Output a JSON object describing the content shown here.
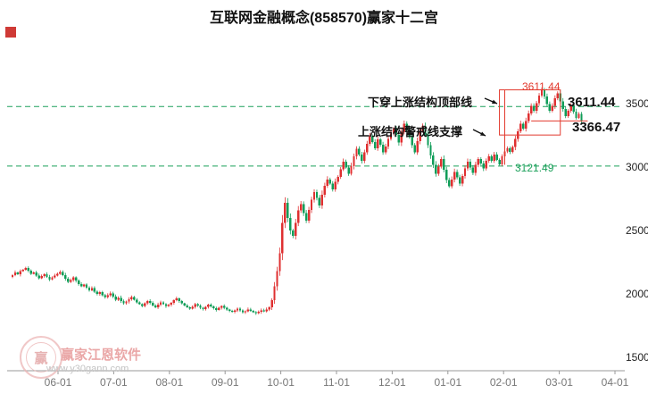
{
  "title": "互联网金融概念(858570)赢家十二宫",
  "annotations": {
    "top_line_label": "下穿上涨结构顶部线",
    "support_label": "上涨结构警戒线支撑"
  },
  "price_labels": {
    "peak_small": "3611.44",
    "right_top": "3611.44",
    "right_bottom": "3366.47",
    "structure_low": "3121.49"
  },
  "watermark": {
    "brand": "赢家江恩软件",
    "url": "www.y30gann.com",
    "seal_char": "赢"
  },
  "chart_data": {
    "type": "candlestick",
    "title": "互联网金融概念(858570)赢家十二宫",
    "x_axis": {
      "tick_labels": [
        "06-01",
        "07-01",
        "08-01",
        "09-01",
        "10-01",
        "11-01",
        "12-01",
        "01-01",
        "02-01",
        "03-01",
        "04-01"
      ]
    },
    "y_axis": {
      "tick_labels": [
        "3500",
        "3000",
        "2500",
        "2000",
        "1500"
      ],
      "tick_values": [
        3500,
        3000,
        2500,
        2000,
        1500
      ],
      "range": [
        1395,
        4060
      ]
    },
    "legend_position": "none",
    "grid": "off",
    "series": [
      {
        "name": "互联网金融概念(858570)",
        "closes": [
          2150,
          2170,
          2155,
          2180,
          2190,
          2205,
          2185,
          2160,
          2170,
          2145,
          2125,
          2140,
          2155,
          2135,
          2115,
          2130,
          2145,
          2160,
          2175,
          2150,
          2120,
          2095,
          2110,
          2130,
          2105,
          2080,
          2060,
          2075,
          2050,
          2030,
          2045,
          2020,
          2000,
          2015,
          1990,
          1975,
          1990,
          2005,
          1980,
          1955,
          1970,
          1945,
          1925,
          1940,
          1960,
          1975,
          1955,
          1935,
          1920,
          1905,
          1925,
          1945,
          1930,
          1910,
          1895,
          1915,
          1935,
          1920,
          1905,
          1915,
          1930,
          1950,
          1965,
          1945,
          1925,
          1910,
          1895,
          1885,
          1900,
          1920,
          1908,
          1892,
          1880,
          1898,
          1915,
          1902,
          1888,
          1875,
          1892,
          1905,
          1890,
          1878,
          1868,
          1858,
          1872,
          1885,
          1870,
          1855,
          1862,
          1878,
          1868,
          1856,
          1848,
          1858,
          1872,
          1862,
          1878,
          1895,
          1950,
          2060,
          2180,
          2320,
          2560,
          2720,
          2600,
          2500,
          2460,
          2560,
          2660,
          2710,
          2640,
          2580,
          2665,
          2745,
          2805,
          2760,
          2700,
          2785,
          2855,
          2905,
          2870,
          2825,
          2885,
          2925,
          2985,
          3045,
          3000,
          2950,
          3010,
          3085,
          3145,
          3100,
          3050,
          3120,
          3185,
          3245,
          3200,
          3150,
          3220,
          3180,
          3120,
          3165,
          3225,
          3265,
          3305,
          3255,
          3195,
          3280,
          3345,
          3300,
          3240,
          3175,
          3120,
          3205,
          3285,
          3325,
          3260,
          3175,
          3095,
          3020,
          2950,
          3005,
          3065,
          2980,
          2900,
          2850,
          2905,
          2965,
          2920,
          2870,
          2930,
          2990,
          3045,
          3000,
          2958,
          3020,
          3065,
          3030,
          2990,
          3050,
          3085,
          3050,
          3100,
          3060,
          3025,
          3085,
          3125,
          3150,
          3121,
          3160,
          3225,
          3285,
          3345,
          3305,
          3365,
          3425,
          3485,
          3445,
          3505,
          3565,
          3611,
          3560,
          3500,
          3445,
          3485,
          3545,
          3585,
          3520,
          3460,
          3405,
          3445,
          3490,
          3440,
          3390,
          3420,
          3366
        ]
      }
    ],
    "key_levels": {
      "peak": 3611.44,
      "support": 3366.47,
      "structure_low": 3121.49,
      "dashed_lines": [
        3480,
        3010
      ]
    },
    "overlay_box": {
      "start_index": 184,
      "end_index": 207,
      "top": 3611.44,
      "bottom": 3255,
      "inner_vertical_index": 186,
      "inner_vertical_bottom": 3020
    },
    "support_segment": {
      "start_index": 196,
      "end_index": 216,
      "value": 3366.47
    },
    "colors": {
      "up": "#df3031",
      "down": "#0f9d58",
      "dashed": "#1ba05a",
      "structure": "#e23a2e",
      "axis": "#999999"
    }
  }
}
